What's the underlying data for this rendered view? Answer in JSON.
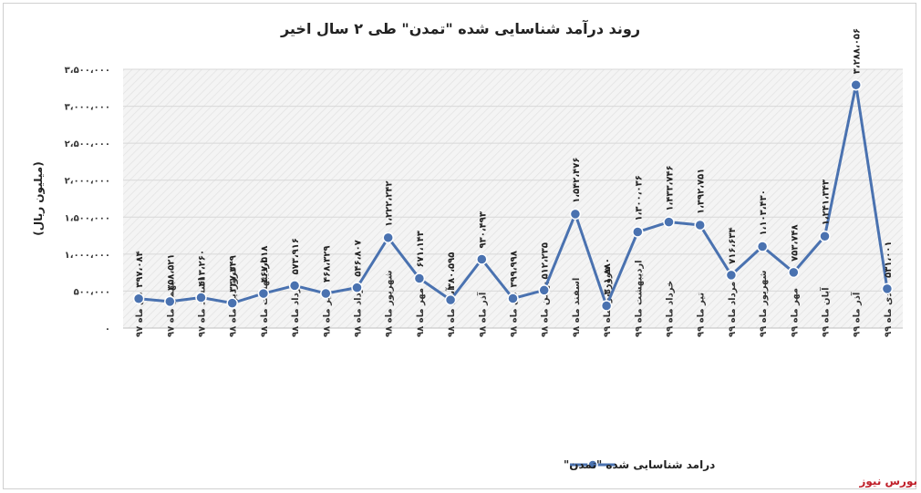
{
  "chart_data": {
    "type": "line",
    "title": "روند درآمد شناسایی شده \"تمدن\" طی ۲ سال اخیر",
    "ylabel": "(میلیون ریال)",
    "xlabel": "",
    "ylim": [
      0,
      3500000
    ],
    "yticks": [
      "۰",
      "۵۰۰،۰۰۰",
      "۱،۰۰۰،۰۰۰",
      "۱،۵۰۰،۰۰۰",
      "۲،۰۰۰،۰۰۰",
      "۲،۵۰۰،۰۰۰",
      "۳،۰۰۰،۰۰۰",
      "۳،۵۰۰،۰۰۰"
    ],
    "ytick_values": [
      0,
      500000,
      1000000,
      1500000,
      2000000,
      2500000,
      3000000,
      3500000
    ],
    "categories": [
      "دی ماه ۹۷",
      "بهمن ماه ۹۷",
      "اسفند ماه ۹۷",
      "فروردین ماه ۹۸",
      "اردیبهشت ماه ۹۸",
      "خرداد ماه ۹۸",
      "تیر ماه ۹۸",
      "مرداد ماه ۹۸",
      "شهریور ماه ۹۸",
      "مهر ماه ۹۸",
      "آبان ماه ۹۸",
      "آذر ماه ۹۸",
      "دی ماه ۹۸",
      "بهمن ماه ۹۸",
      "اسفند ماه ۹۸",
      "فروردین ماه ۹۹",
      "اردیبهشت ماه ۹۹",
      "خرداد ماه ۹۹",
      "تیر ماه ۹۹",
      "مرداد ماه ۹۹",
      "شهریور ماه ۹۹",
      "مهر ماه ۹۹",
      "آبان ماه ۹۹",
      "آذر ماه ۹۹",
      "دی ماه ۹۹"
    ],
    "series": [
      {
        "name": "درامد شناسایی شده \"تمدن\"",
        "color": "#4a72b0",
        "values": [
          397084,
          358521,
          413260,
          337349,
          467518,
          573916,
          468329,
          546807,
          1222242,
          671143,
          380595,
          930493,
          399998,
          512235,
          1542476,
          301880,
          1300036,
          1433746,
          1392751,
          716634,
          1103430,
          753748,
          1241343,
          3288056,
          531001
        ],
        "labels": [
          "۳۹۷،۰۸۴",
          "۳۵۸،۵۲۱",
          "۴۱۳،۲۶۰",
          "۳۳۷،۳۴۹",
          "۴۶۷،۵۱۸",
          "۵۷۳،۹۱۶",
          "۴۶۸،۳۲۹",
          "۵۴۶،۸۰۷",
          "۱،۲۲۲،۲۴۲",
          "۶۷۱،۱۴۳",
          "۳۸۰،۵۹۵",
          "۹۳۰،۴۹۳",
          "۳۹۹،۹۹۸",
          "۵۱۲،۲۳۵",
          "۱،۵۴۲،۴۷۶",
          "۳۰۱،۸۸۰",
          "۱،۳۰۰،۰۳۶",
          "۱،۴۳۳،۷۴۶",
          "۱،۳۹۲،۷۵۱",
          "۷۱۶،۶۳۴",
          "۱،۱۰۳،۴۳۰",
          "۷۵۳،۷۴۸",
          "۱،۲۴۱،۳۴۳",
          "۳،۲۸۸،۰۵۶",
          "۵۳۱،۰۰۱"
        ]
      }
    ],
    "grid": true,
    "legend_position": "bottom"
  },
  "watermark": {
    "text": "بورس نیوز",
    "color": "#c0202a"
  }
}
